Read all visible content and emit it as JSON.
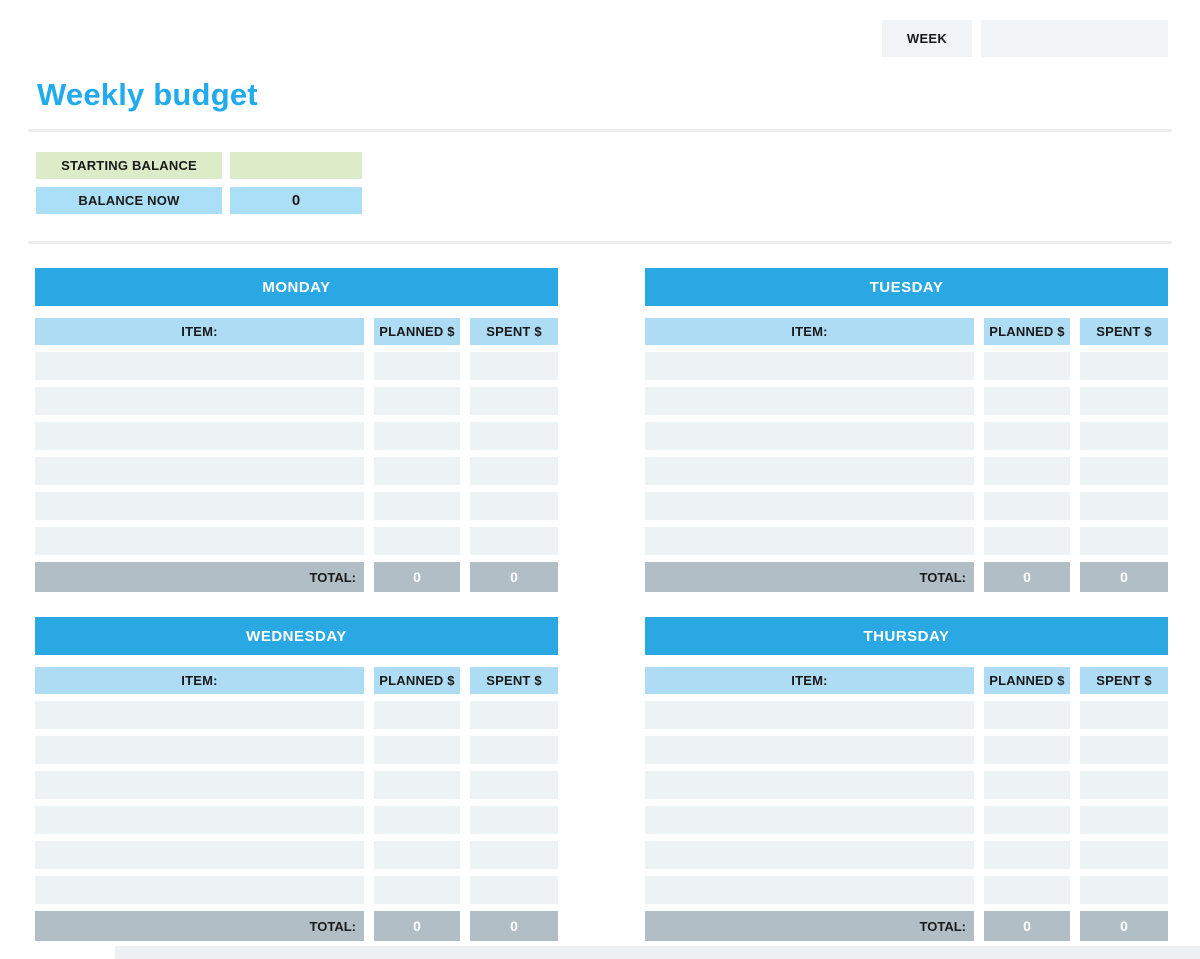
{
  "header": {
    "week_label": "WEEK",
    "week_value": ""
  },
  "title": "Weekly budget",
  "balance": {
    "starting_label": "STARTING BALANCE",
    "starting_value": "",
    "now_label": "BALANCE NOW",
    "now_value": "0"
  },
  "table_headers": {
    "item": "ITEM:",
    "planned": "PLANNED $",
    "spent": "SPENT $",
    "total_label": "TOTAL:"
  },
  "days": [
    {
      "name": "MONDAY",
      "rows": [
        {
          "item": "",
          "planned": "",
          "spent": ""
        },
        {
          "item": "",
          "planned": "",
          "spent": ""
        },
        {
          "item": "",
          "planned": "",
          "spent": ""
        },
        {
          "item": "",
          "planned": "",
          "spent": ""
        },
        {
          "item": "",
          "planned": "",
          "spent": ""
        },
        {
          "item": "",
          "planned": "",
          "spent": ""
        }
      ],
      "total_planned": "0",
      "total_spent": "0"
    },
    {
      "name": "TUESDAY",
      "rows": [
        {
          "item": "",
          "planned": "",
          "spent": ""
        },
        {
          "item": "",
          "planned": "",
          "spent": ""
        },
        {
          "item": "",
          "planned": "",
          "spent": ""
        },
        {
          "item": "",
          "planned": "",
          "spent": ""
        },
        {
          "item": "",
          "planned": "",
          "spent": ""
        },
        {
          "item": "",
          "planned": "",
          "spent": ""
        }
      ],
      "total_planned": "0",
      "total_spent": "0"
    },
    {
      "name": "WEDNESDAY",
      "rows": [
        {
          "item": "",
          "planned": "",
          "spent": ""
        },
        {
          "item": "",
          "planned": "",
          "spent": ""
        },
        {
          "item": "",
          "planned": "",
          "spent": ""
        },
        {
          "item": "",
          "planned": "",
          "spent": ""
        },
        {
          "item": "",
          "planned": "",
          "spent": ""
        },
        {
          "item": "",
          "planned": "",
          "spent": ""
        }
      ],
      "total_planned": "0",
      "total_spent": "0"
    },
    {
      "name": "THURSDAY",
      "rows": [
        {
          "item": "",
          "planned": "",
          "spent": ""
        },
        {
          "item": "",
          "planned": "",
          "spent": ""
        },
        {
          "item": "",
          "planned": "",
          "spent": ""
        },
        {
          "item": "",
          "planned": "",
          "spent": ""
        },
        {
          "item": "",
          "planned": "",
          "spent": ""
        },
        {
          "item": "",
          "planned": "",
          "spent": ""
        }
      ],
      "total_planned": "0",
      "total_spent": "0"
    }
  ],
  "colors": {
    "title_blue": "#21abee",
    "day_header_blue": "#29a8e4",
    "column_header_blue": "#aedcf4",
    "balance_blue": "#abdef7",
    "starting_green": "#dcebc8",
    "row_gray": "#edf2f5",
    "total_gray": "#b2bec5",
    "header_box_gray": "#f0f4f7",
    "bottom_strip": "#eef1f3"
  }
}
